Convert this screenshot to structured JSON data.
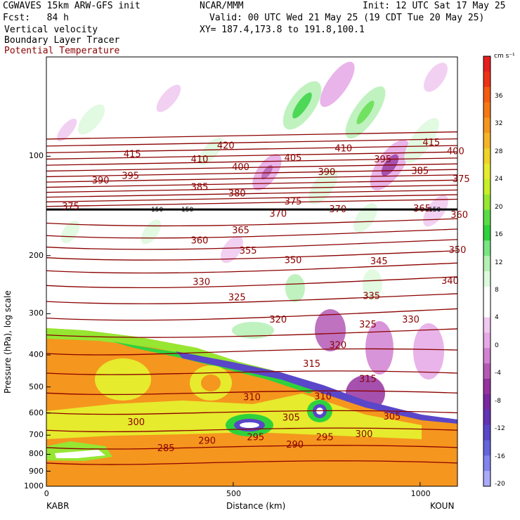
{
  "header": {
    "line1_left": "CGWAVES 15km ARW-GFS init",
    "line1_mid": "NCAR/MMM",
    "line1_right": "Init: 12 UTC Sat 17 May 25",
    "line2_left": "Fcst:   84 h",
    "line2_right": "Valid: 00 UTC Wed 21 May 25 (19 CDT Tue 20 May 25)",
    "line3_left": "Vertical velocity",
    "line3_right": "XY= 187.4,173.8 to 191.8,100.1",
    "line4_left": "Boundary Layer Tracer",
    "line5_left": "Potential Temperature"
  },
  "colors": {
    "potential_temperature": "#8b0000",
    "tropopause_line": "#000000"
  },
  "chart_data": {
    "type": "heatmap",
    "title": "",
    "xlabel": "Distance (km)",
    "ylabel": "Pressure (hPa), log scale",
    "x_ticks": [
      "0",
      "500",
      "1000"
    ],
    "y_ticks": [
      "100",
      "200",
      "300",
      "400",
      "500",
      "600",
      "700",
      "800",
      "900",
      "1000"
    ],
    "y_scale": "log",
    "x_start_label": "KABR",
    "x_end_label": "KOUN",
    "tropopause_marker_labels": [
      "150",
      "150",
      "150"
    ],
    "colorbar": {
      "unit": "cm s⁻¹",
      "labels": [
        "36",
        "32",
        "28",
        "24",
        "20",
        "16",
        "12",
        "8",
        "4",
        "0",
        "-4",
        "-8",
        "-12",
        "-16",
        "-20"
      ],
      "colors": [
        "#e61e1e",
        "#f03214",
        "#f55a0f",
        "#f57814",
        "#f5961e",
        "#f5b428",
        "#f0d228",
        "#e6eb2d",
        "#c8ee28",
        "#96e632",
        "#5adc46",
        "#2ed23c",
        "#78e682",
        "#b4f0b4",
        "#dcfadc",
        "#ffffff",
        "#ffffff",
        "#f0c8f0",
        "#e6a8e6",
        "#d282d2",
        "#b45ab4",
        "#9632a0",
        "#7828a0",
        "#6432b4",
        "#5a46c8",
        "#6464dc",
        "#8282f0",
        "#aaaafa"
      ]
    },
    "contours": [
      {
        "value": "415",
        "x_km": 230,
        "p_hpa": 104
      },
      {
        "value": "420",
        "x_km": 480,
        "p_hpa": 98
      },
      {
        "value": "410",
        "x_km": 410,
        "p_hpa": 108
      },
      {
        "value": "405",
        "x_km": 660,
        "p_hpa": 107
      },
      {
        "value": "410",
        "x_km": 795,
        "p_hpa": 100
      },
      {
        "value": "415",
        "x_km": 1030,
        "p_hpa": 96
      },
      {
        "value": "400",
        "x_km": 1095,
        "p_hpa": 102
      },
      {
        "value": "395",
        "x_km": 900,
        "p_hpa": 108
      },
      {
        "value": "400",
        "x_km": 520,
        "p_hpa": 114
      },
      {
        "value": "390",
        "x_km": 145,
        "p_hpa": 125
      },
      {
        "value": "395",
        "x_km": 225,
        "p_hpa": 121
      },
      {
        "value": "390",
        "x_km": 750,
        "p_hpa": 118
      },
      {
        "value": "385",
        "x_km": 1000,
        "p_hpa": 117
      },
      {
        "value": "375",
        "x_km": 1110,
        "p_hpa": 124
      },
      {
        "value": "385",
        "x_km": 410,
        "p_hpa": 131
      },
      {
        "value": "380",
        "x_km": 510,
        "p_hpa": 137
      },
      {
        "value": "375",
        "x_km": 660,
        "p_hpa": 145
      },
      {
        "value": "370",
        "x_km": 780,
        "p_hpa": 153
      },
      {
        "value": "365",
        "x_km": 1005,
        "p_hpa": 152
      },
      {
        "value": "370",
        "x_km": 620,
        "p_hpa": 158
      },
      {
        "value": "360",
        "x_km": 1105,
        "p_hpa": 159
      },
      {
        "value": "375",
        "x_km": 65,
        "p_hpa": 150
      },
      {
        "value": "360",
        "x_km": 410,
        "p_hpa": 190
      },
      {
        "value": "365",
        "x_km": 520,
        "p_hpa": 177
      },
      {
        "value": "355",
        "x_km": 540,
        "p_hpa": 204
      },
      {
        "value": "350",
        "x_km": 660,
        "p_hpa": 218
      },
      {
        "value": "350",
        "x_km": 1100,
        "p_hpa": 203
      },
      {
        "value": "345",
        "x_km": 890,
        "p_hpa": 220
      },
      {
        "value": "340",
        "x_km": 1080,
        "p_hpa": 252
      },
      {
        "value": "335",
        "x_km": 870,
        "p_hpa": 280
      },
      {
        "value": "330",
        "x_km": 975,
        "p_hpa": 330
      },
      {
        "value": "330",
        "x_km": 415,
        "p_hpa": 254
      },
      {
        "value": "325",
        "x_km": 510,
        "p_hpa": 283
      },
      {
        "value": "325",
        "x_km": 860,
        "p_hpa": 342
      },
      {
        "value": "320",
        "x_km": 620,
        "p_hpa": 330
      },
      {
        "value": "320",
        "x_km": 780,
        "p_hpa": 395
      },
      {
        "value": "315",
        "x_km": 710,
        "p_hpa": 450
      },
      {
        "value": "315",
        "x_km": 860,
        "p_hpa": 500
      },
      {
        "value": "310",
        "x_km": 550,
        "p_hpa": 568
      },
      {
        "value": "310",
        "x_km": 740,
        "p_hpa": 565
      },
      {
        "value": "305",
        "x_km": 655,
        "p_hpa": 655
      },
      {
        "value": "305",
        "x_km": 925,
        "p_hpa": 650
      },
      {
        "value": "300",
        "x_km": 240,
        "p_hpa": 675
      },
      {
        "value": "300",
        "x_km": 850,
        "p_hpa": 735
      },
      {
        "value": "295",
        "x_km": 560,
        "p_hpa": 750
      },
      {
        "value": "295",
        "x_km": 745,
        "p_hpa": 750
      },
      {
        "value": "290",
        "x_km": 430,
        "p_hpa": 770
      },
      {
        "value": "290",
        "x_km": 665,
        "p_hpa": 790
      },
      {
        "value": "285",
        "x_km": 320,
        "p_hpa": 810
      }
    ]
  }
}
